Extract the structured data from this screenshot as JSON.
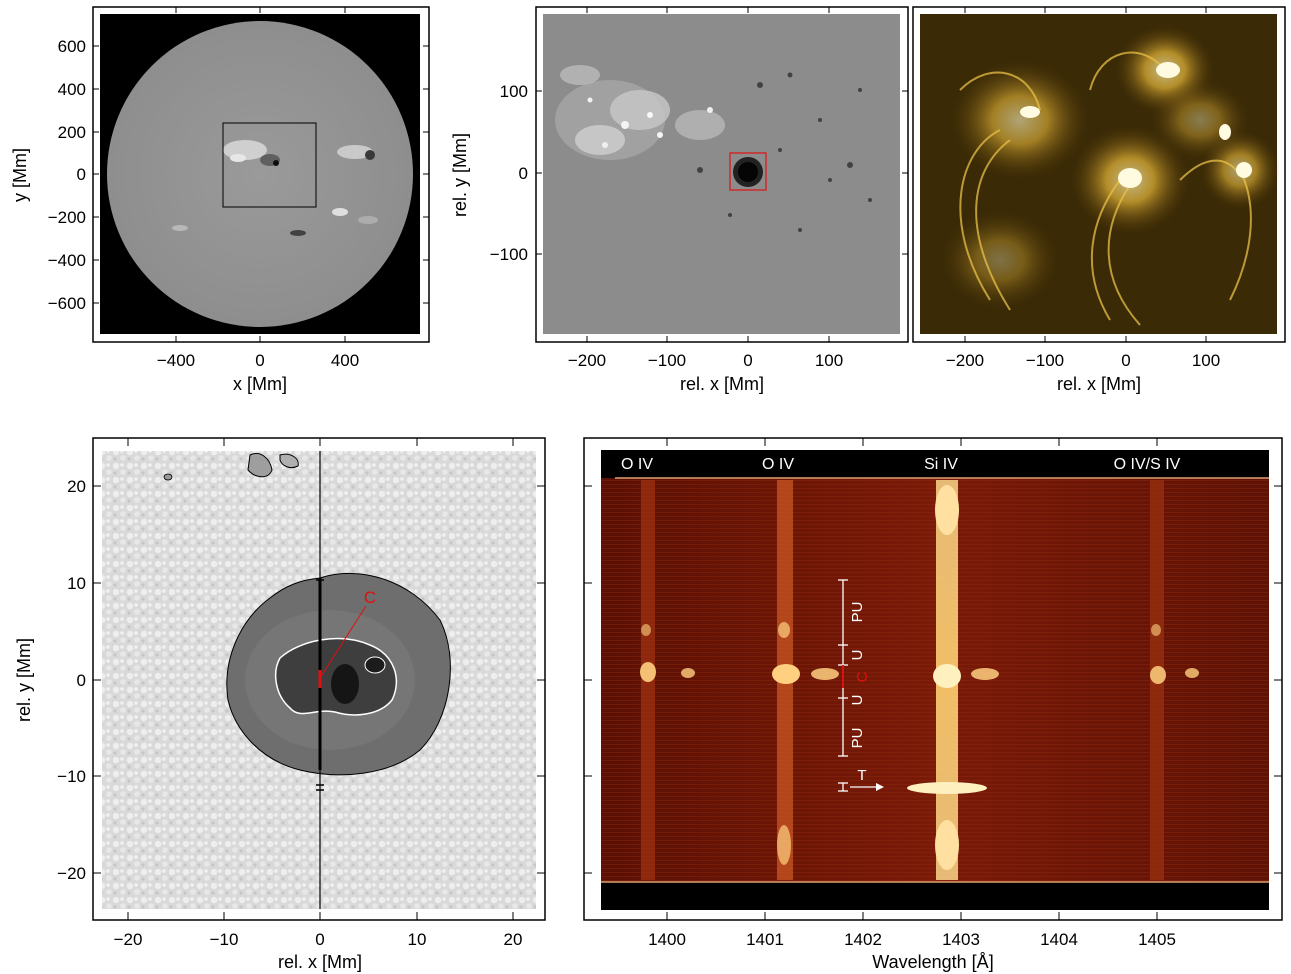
{
  "panel_a": {
    "xlabel": "x [Mm]",
    "ylabel": "y [Mm]",
    "xticks": [
      "−400",
      "0",
      "400"
    ],
    "yticks": [
      "600",
      "400",
      "200",
      "0",
      "−200",
      "−400",
      "−600"
    ]
  },
  "panel_b": {
    "xlabel": "rel. x [Mm]",
    "ylabel": "rel. y [Mm]",
    "xticks": [
      "−200",
      "−100",
      "0",
      "100"
    ],
    "yticks": [
      "100",
      "0",
      "−100"
    ]
  },
  "panel_c": {
    "xlabel": "rel. x [Mm]",
    "xticks": [
      "−200",
      "−100",
      "0",
      "100"
    ]
  },
  "panel_d": {
    "xlabel": "rel. x [Mm]",
    "ylabel": "rel. y [Mm]",
    "xticks": [
      "−20",
      "−10",
      "0",
      "10",
      "20"
    ],
    "yticks": [
      "20",
      "10",
      "0",
      "−10",
      "−20"
    ],
    "marker_label": "C"
  },
  "panel_e": {
    "xlabel": "Wavelength [Å]",
    "xticks": [
      "1400",
      "1401",
      "1402",
      "1403",
      "1404",
      "1405"
    ],
    "line_labels": [
      "O IV",
      "O IV",
      "Si IV",
      "O IV/S IV"
    ],
    "region_labels": {
      "pu_upper": "PU",
      "u_upper": "U",
      "c": "C",
      "u_lower": "U",
      "pu_lower": "PU",
      "t": "T"
    }
  },
  "colors": {
    "aia_gold": "#c8a020",
    "iris_red": "#8a1c08",
    "marker_red": "#e01010"
  }
}
